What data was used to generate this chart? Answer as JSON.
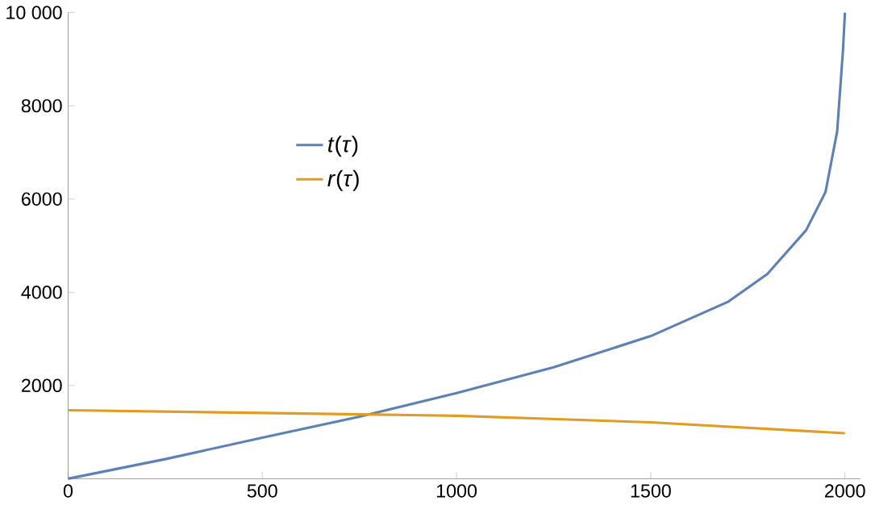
{
  "chart_data": {
    "type": "line",
    "xlim": [
      0,
      2040
    ],
    "ylim": [
      0,
      10000
    ],
    "xticks": [
      0,
      500,
      1000,
      1500,
      2000
    ],
    "yticks": [
      2000,
      4000,
      6000,
      8000,
      {
        "value": 10000,
        "label": "10 000"
      }
    ],
    "grid": false,
    "legend": "top left",
    "marker": "none",
    "line_style": "solid",
    "series": [
      {
        "name": "*t*(*τ*)",
        "color": "#5e81b5",
        "x": [
          0,
          250,
          500,
          750,
          1000,
          1250,
          1500,
          1700,
          1800,
          1900,
          1950,
          1980,
          1995,
          2000
        ],
        "values": [
          0,
          420,
          880,
          1330,
          1835,
          2390,
          3060,
          3800,
          4390,
          5330,
          6150,
          7450,
          9200,
          10000
        ]
      },
      {
        "name": "*r*(*τ*)",
        "color": "#e19c24",
        "x": [
          0,
          500,
          750,
          1000,
          1500,
          2000
        ],
        "values": [
          1470,
          1410,
          1380,
          1350,
          1210,
          975
        ]
      }
    ]
  }
}
